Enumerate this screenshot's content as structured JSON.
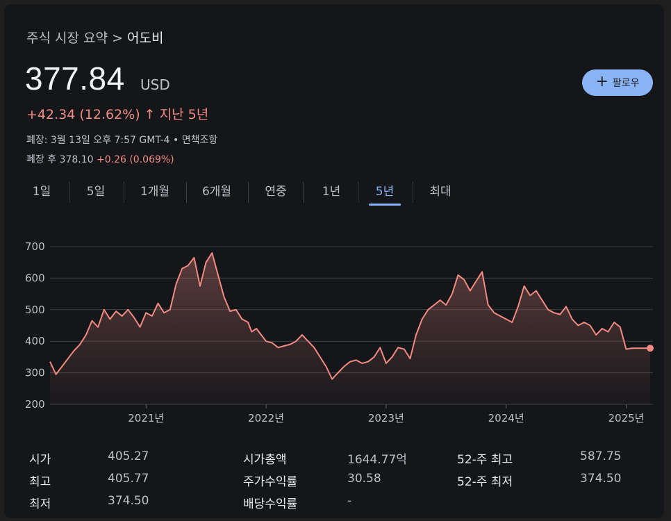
{
  "breadcrumb": {
    "parent": "주식 시장 요약",
    "separator": ">",
    "current": "어도비"
  },
  "quote": {
    "price": "377.84",
    "currency": "USD",
    "change": "+42.34 (12.62%)",
    "change_arrow": "↑",
    "period": "지난 5년",
    "market_status": "폐장: 3월 13일 오후 7:57 GMT-4 • 면책조항",
    "after_hours_label": "폐장 후 378.10",
    "after_hours_change": "+0.26 (0.069%)"
  },
  "follow_button": {
    "icon": "plus-icon",
    "label": "팔로우"
  },
  "tabs": [
    "1일",
    "5일",
    "1개월",
    "6개월",
    "연중",
    "1년",
    "5년",
    "최대"
  ],
  "active_tab": "5년",
  "colors": {
    "line": "#f28b82",
    "accent": "#8ab4f8",
    "background": "#15161a"
  },
  "chart_data": {
    "type": "area",
    "title": "",
    "xlabel": "",
    "ylabel": "",
    "ylim": [
      200,
      700
    ],
    "y_ticks": [
      "700",
      "600",
      "500",
      "400",
      "300",
      "200"
    ],
    "x_tick_labels": [
      "2021년",
      "2022년",
      "2023년",
      "2024년",
      "2025년"
    ],
    "grid": true,
    "series": [
      {
        "x": [
          2020.2,
          2020.25,
          2020.3,
          2020.35,
          2020.4,
          2020.45,
          2020.5,
          2020.55,
          2020.6,
          2020.65,
          2020.7,
          2020.75,
          2020.8,
          2020.85,
          2020.9,
          2020.95,
          2021.0,
          2021.05,
          2021.1,
          2021.15,
          2021.2,
          2021.25,
          2021.3,
          2021.35,
          2021.4,
          2021.45,
          2021.5,
          2021.55,
          2021.6,
          2021.65,
          2021.7,
          2021.75,
          2021.8,
          2021.85,
          2021.88,
          2021.92,
          2021.96,
          2022.0,
          2022.05,
          2022.1,
          2022.15,
          2022.2,
          2022.25,
          2022.3,
          2022.35,
          2022.4,
          2022.45,
          2022.5,
          2022.55,
          2022.6,
          2022.65,
          2022.7,
          2022.75,
          2022.8,
          2022.85,
          2022.9,
          2022.95,
          2023.0,
          2023.05,
          2023.1,
          2023.15,
          2023.2,
          2023.25,
          2023.3,
          2023.35,
          2023.4,
          2023.45,
          2023.5,
          2023.55,
          2023.6,
          2023.65,
          2023.7,
          2023.75,
          2023.8,
          2023.85,
          2023.9,
          2023.95,
          2024.0,
          2024.05,
          2024.1,
          2024.15,
          2024.2,
          2024.25,
          2024.3,
          2024.35,
          2024.4,
          2024.45,
          2024.5,
          2024.55,
          2024.6,
          2024.65,
          2024.7,
          2024.75,
          2024.8,
          2024.85,
          2024.9,
          2024.95,
          2025.0,
          2025.05,
          2025.1,
          2025.15,
          2025.2
        ],
        "values": [
          335,
          295,
          320,
          345,
          370,
          390,
          420,
          465,
          445,
          500,
          470,
          495,
          480,
          500,
          475,
          445,
          490,
          480,
          520,
          490,
          500,
          580,
          630,
          640,
          665,
          575,
          650,
          680,
          610,
          540,
          495,
          500,
          470,
          460,
          430,
          440,
          420,
          400,
          395,
          380,
          385,
          390,
          400,
          420,
          400,
          380,
          350,
          320,
          280,
          300,
          320,
          335,
          340,
          330,
          335,
          350,
          380,
          330,
          350,
          380,
          375,
          345,
          420,
          470,
          500,
          515,
          530,
          515,
          550,
          610,
          595,
          560,
          590,
          620,
          515,
          490,
          480,
          470,
          460,
          510,
          575,
          545,
          560,
          530,
          500,
          490,
          485,
          510,
          470,
          450,
          460,
          450,
          420,
          440,
          430,
          460,
          445,
          375,
          377.84,
          377.84,
          377.84,
          377.84
        ]
      }
    ],
    "last_value": 377.84
  },
  "stats": {
    "col1": [
      {
        "label": "시가",
        "value": "405.27"
      },
      {
        "label": "최고",
        "value": "405.77"
      },
      {
        "label": "최저",
        "value": "374.50"
      }
    ],
    "col2": [
      {
        "label": "시가총액",
        "value": "1644.77억"
      },
      {
        "label": "주가수익률",
        "value": "30.58"
      },
      {
        "label": "배당수익률",
        "value": "-"
      }
    ],
    "col3": [
      {
        "label": "52-주 최고",
        "value": "587.75"
      },
      {
        "label": "52-주 최저",
        "value": "374.50"
      }
    ]
  }
}
